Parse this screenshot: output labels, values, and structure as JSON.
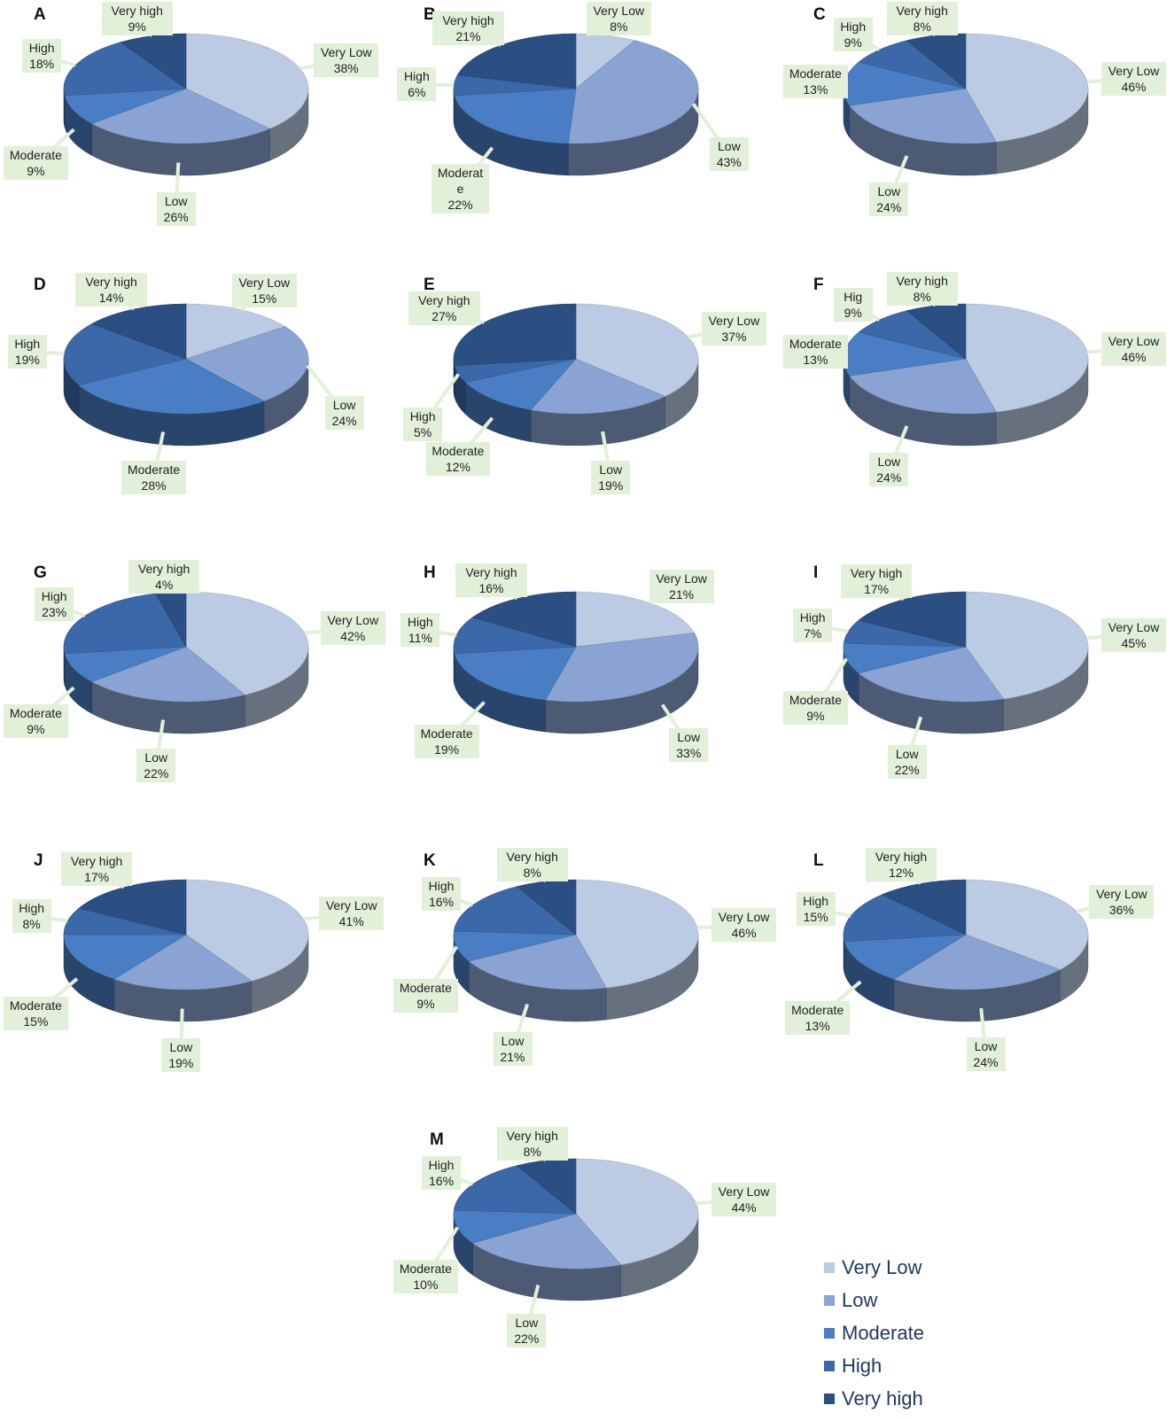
{
  "colors": {
    "very_low": "#bccbe4",
    "low": "#8aa3d2",
    "moderate": "#4a7ec4",
    "high": "#3b68a8",
    "very_high": "#2b4f82",
    "callout_bg": "#e2efd9"
  },
  "legend": [
    {
      "key": "very_low",
      "label": "Very Low"
    },
    {
      "key": "low",
      "label": "Low"
    },
    {
      "key": "moderate",
      "label": "Moderate"
    },
    {
      "key": "high",
      "label": "High"
    },
    {
      "key": "very_high",
      "label": "Very high"
    }
  ],
  "chart_data": [
    {
      "type": "pie",
      "panel": "A",
      "slices": [
        {
          "key": "very_low",
          "label": "Very Low",
          "value": 38,
          "value_label": "38%"
        },
        {
          "key": "low",
          "label": "Low",
          "value": 26,
          "value_label": "26%"
        },
        {
          "key": "moderate",
          "label": "Moderate",
          "value": 9,
          "value_label": "9%"
        },
        {
          "key": "high",
          "label": "High",
          "value": 18,
          "value_label": "18%"
        },
        {
          "key": "very_high",
          "label": "Very high",
          "value": 9,
          "value_label": "9%"
        }
      ]
    },
    {
      "type": "pie",
      "panel": "B",
      "slices": [
        {
          "key": "very_low",
          "label": "Very Low",
          "value": 8,
          "value_label": "8%"
        },
        {
          "key": "low",
          "label": "Low",
          "value": 43,
          "value_label": "43%"
        },
        {
          "key": "moderate",
          "label": "Moderat\ne",
          "value": 22,
          "value_label": "22%"
        },
        {
          "key": "high",
          "label": "High",
          "value": 6,
          "value_label": "6%"
        },
        {
          "key": "very_high",
          "label": "Very high",
          "value": 21,
          "value_label": "21%"
        }
      ]
    },
    {
      "type": "pie",
      "panel": "C",
      "slices": [
        {
          "key": "very_low",
          "label": "Very Low",
          "value": 46,
          "value_label": "46%"
        },
        {
          "key": "low",
          "label": "Low",
          "value": 24,
          "value_label": "24%"
        },
        {
          "key": "moderate",
          "label": "Moderate",
          "value": 13,
          "value_label": "13%"
        },
        {
          "key": "high",
          "label": "High",
          "value": 9,
          "value_label": "9%"
        },
        {
          "key": "very_high",
          "label": "Very high",
          "value": 8,
          "value_label": "8%"
        }
      ]
    },
    {
      "type": "pie",
      "panel": "D",
      "slices": [
        {
          "key": "very_low",
          "label": "Very Low",
          "value": 15,
          "value_label": "15%"
        },
        {
          "key": "low",
          "label": "Low",
          "value": 24,
          "value_label": "24%"
        },
        {
          "key": "moderate",
          "label": "Moderate",
          "value": 28,
          "value_label": "28%"
        },
        {
          "key": "high",
          "label": "High",
          "value": 19,
          "value_label": "19%"
        },
        {
          "key": "very_high",
          "label": "Very high",
          "value": 14,
          "value_label": "14%"
        }
      ]
    },
    {
      "type": "pie",
      "panel": "E",
      "slices": [
        {
          "key": "very_low",
          "label": "Very Low",
          "value": 37,
          "value_label": "37%"
        },
        {
          "key": "low",
          "label": "Low",
          "value": 19,
          "value_label": "19%"
        },
        {
          "key": "moderate",
          "label": "Moderate",
          "value": 12,
          "value_label": "12%"
        },
        {
          "key": "high",
          "label": "High",
          "value": 5,
          "value_label": "5%"
        },
        {
          "key": "very_high",
          "label": "Very high",
          "value": 27,
          "value_label": "27%"
        }
      ]
    },
    {
      "type": "pie",
      "panel": "F",
      "slices": [
        {
          "key": "very_low",
          "label": "Very Low",
          "value": 46,
          "value_label": "46%"
        },
        {
          "key": "low",
          "label": "Low",
          "value": 24,
          "value_label": "24%"
        },
        {
          "key": "moderate",
          "label": "Moderate",
          "value": 13,
          "value_label": "13%"
        },
        {
          "key": "high",
          "label": "Hig",
          "value": 9,
          "value_label": "9%"
        },
        {
          "key": "very_high",
          "label": "Very high",
          "value": 8,
          "value_label": "8%"
        }
      ]
    },
    {
      "type": "pie",
      "panel": "G",
      "slices": [
        {
          "key": "very_low",
          "label": "Very Low",
          "value": 42,
          "value_label": "42%"
        },
        {
          "key": "low",
          "label": "Low",
          "value": 22,
          "value_label": "22%"
        },
        {
          "key": "moderate",
          "label": "Moderate",
          "value": 9,
          "value_label": "9%"
        },
        {
          "key": "high",
          "label": "High",
          "value": 23,
          "value_label": "23%"
        },
        {
          "key": "very_high",
          "label": "Very high",
          "value": 4,
          "value_label": "4%"
        }
      ]
    },
    {
      "type": "pie",
      "panel": "H",
      "slices": [
        {
          "key": "very_low",
          "label": "Very Low",
          "value": 21,
          "value_label": "21%"
        },
        {
          "key": "low",
          "label": "Low",
          "value": 33,
          "value_label": "33%"
        },
        {
          "key": "moderate",
          "label": "Moderate",
          "value": 19,
          "value_label": "19%"
        },
        {
          "key": "high",
          "label": "High",
          "value": 11,
          "value_label": "11%"
        },
        {
          "key": "very_high",
          "label": "Very high",
          "value": 16,
          "value_label": "16%"
        }
      ]
    },
    {
      "type": "pie",
      "panel": "I",
      "slices": [
        {
          "key": "very_low",
          "label": "Very Low",
          "value": 45,
          "value_label": "45%"
        },
        {
          "key": "low",
          "label": "Low",
          "value": 22,
          "value_label": "22%"
        },
        {
          "key": "moderate",
          "label": "Moderate",
          "value": 9,
          "value_label": "9%"
        },
        {
          "key": "high",
          "label": "High",
          "value": 7,
          "value_label": "7%"
        },
        {
          "key": "very_high",
          "label": "Very high",
          "value": 17,
          "value_label": "17%"
        }
      ]
    },
    {
      "type": "pie",
      "panel": "J",
      "slices": [
        {
          "key": "very_low",
          "label": "Very Low",
          "value": 41,
          "value_label": "41%"
        },
        {
          "key": "low",
          "label": "Low",
          "value": 19,
          "value_label": "19%"
        },
        {
          "key": "moderate",
          "label": "Moderate",
          "value": 15,
          "value_label": "15%"
        },
        {
          "key": "high",
          "label": "High",
          "value": 8,
          "value_label": "8%"
        },
        {
          "key": "very_high",
          "label": "Very high",
          "value": 17,
          "value_label": "17%"
        }
      ]
    },
    {
      "type": "pie",
      "panel": "K",
      "slices": [
        {
          "key": "very_low",
          "label": "Very Low",
          "value": 46,
          "value_label": "46%"
        },
        {
          "key": "low",
          "label": "Low",
          "value": 21,
          "value_label": "21%"
        },
        {
          "key": "moderate",
          "label": "Moderate",
          "value": 9,
          "value_label": "9%"
        },
        {
          "key": "high",
          "label": "High",
          "value": 16,
          "value_label": "16%"
        },
        {
          "key": "very_high",
          "label": "Very high",
          "value": 8,
          "value_label": "8%"
        }
      ]
    },
    {
      "type": "pie",
      "panel": "L",
      "slices": [
        {
          "key": "very_low",
          "label": "Very Low",
          "value": 36,
          "value_label": "36%"
        },
        {
          "key": "low",
          "label": "Low",
          "value": 24,
          "value_label": "24%"
        },
        {
          "key": "moderate",
          "label": "Moderate",
          "value": 13,
          "value_label": "13%"
        },
        {
          "key": "high",
          "label": "High",
          "value": 15,
          "value_label": "15%"
        },
        {
          "key": "very_high",
          "label": "Very high",
          "value": 12,
          "value_label": "12%"
        }
      ]
    },
    {
      "type": "pie",
      "panel": "M",
      "slices": [
        {
          "key": "very_low",
          "label": "Very Low",
          "value": 44,
          "value_label": "44%"
        },
        {
          "key": "low",
          "label": "Low",
          "value": 22,
          "value_label": "22%"
        },
        {
          "key": "moderate",
          "label": "Moderate",
          "value": 10,
          "value_label": "10%"
        },
        {
          "key": "high",
          "label": "High",
          "value": 16,
          "value_label": "16%"
        },
        {
          "key": "very_high",
          "label": "Very high",
          "value": 8,
          "value_label": "8%"
        }
      ]
    }
  ]
}
